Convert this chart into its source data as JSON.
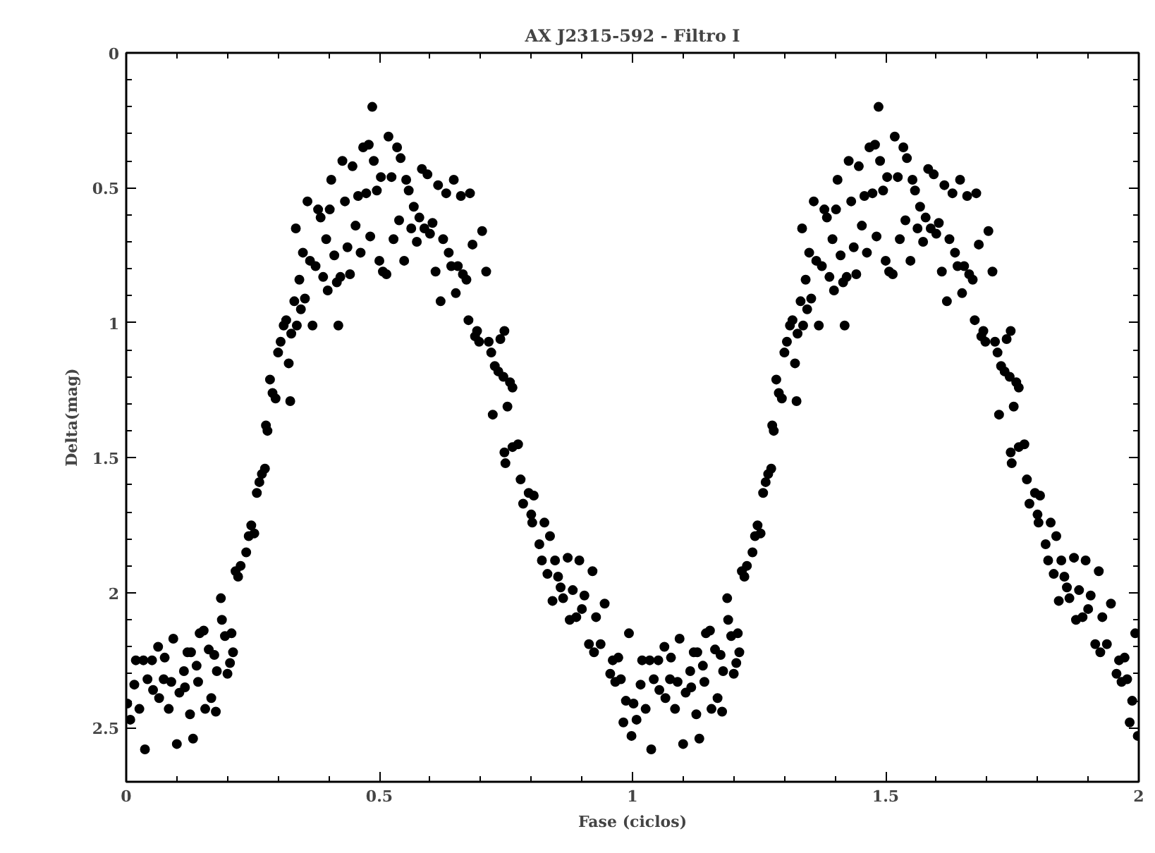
{
  "chart_data": {
    "type": "scatter",
    "title": "AX J2315-592 - Filtro I",
    "xlabel": "Fase (ciclos)",
    "ylabel": "Delta(mag)",
    "xlim": [
      0,
      2
    ],
    "ylim": [
      2.7,
      0
    ],
    "xticks": [
      0,
      0.5,
      1,
      1.5,
      2
    ],
    "yticks": [
      0,
      0.5,
      1,
      1.5,
      2,
      2.5
    ],
    "grid": false,
    "marker": "circle",
    "series": [
      {
        "color": "#000000",
        "x": [
          0.002,
          0.008,
          0.016,
          0.019,
          0.026,
          0.034,
          0.037,
          0.042,
          0.051,
          0.053,
          0.063,
          0.065,
          0.074,
          0.076,
          0.084,
          0.089,
          0.093,
          0.1,
          0.105,
          0.114,
          0.116,
          0.121,
          0.126,
          0.128,
          0.132,
          0.139,
          0.142,
          0.145,
          0.153,
          0.156,
          0.163,
          0.168,
          0.174,
          0.177,
          0.179,
          0.187,
          0.189,
          0.195,
          0.2,
          0.205,
          0.208,
          0.211,
          0.216,
          0.221,
          0.226,
          0.237,
          0.242,
          0.247,
          0.253,
          0.258,
          0.263,
          0.268,
          0.274,
          0.276,
          0.279,
          0.284,
          0.289,
          0.295,
          0.3,
          0.305,
          0.311,
          0.316,
          0.321,
          0.324,
          0.326,
          0.332,
          0.335,
          0.337,
          0.342,
          0.345,
          0.349,
          0.353,
          0.358,
          0.363,
          0.368,
          0.374,
          0.379,
          0.384,
          0.389,
          0.395,
          0.398,
          0.402,
          0.405,
          0.411,
          0.416,
          0.419,
          0.423,
          0.427,
          0.432,
          0.437,
          0.442,
          0.447,
          0.453,
          0.458,
          0.463,
          0.468,
          0.474,
          0.479,
          0.482,
          0.486,
          0.489,
          0.495,
          0.5,
          0.503,
          0.507,
          0.514,
          0.518,
          0.524,
          0.528,
          0.535,
          0.539,
          0.542,
          0.549,
          0.553,
          0.558,
          0.563,
          0.568,
          0.574,
          0.579,
          0.584,
          0.589,
          0.595,
          0.6,
          0.605,
          0.611,
          0.616,
          0.621,
          0.626,
          0.632,
          0.637,
          0.642,
          0.647,
          0.651,
          0.655,
          0.661,
          0.665,
          0.672,
          0.676,
          0.679,
          0.684,
          0.689,
          0.693,
          0.697,
          0.703,
          0.711,
          0.716,
          0.721,
          0.724,
          0.728,
          0.735,
          0.739,
          0.745,
          0.747,
          0.753,
          0.758,
          0.763,
          0.747,
          0.749,
          0.763,
          0.774,
          0.779,
          0.784,
          0.795,
          0.8,
          0.802,
          0.805,
          0.816,
          0.821,
          0.826,
          0.832,
          0.837,
          0.842,
          0.847,
          0.853,
          0.858,
          0.863,
          0.872,
          0.876,
          0.882,
          0.889,
          0.895,
          0.9,
          0.905,
          0.914,
          0.921,
          0.924,
          0.928,
          0.937,
          0.945,
          0.956,
          0.961,
          0.966,
          0.972,
          0.977,
          0.982,
          0.987,
          0.993,
          0.998,
          1.002,
          1.008,
          1.016,
          1.019,
          1.026,
          1.034,
          1.037,
          1.042,
          1.051,
          1.053,
          1.063,
          1.065,
          1.074,
          1.076,
          1.084,
          1.089,
          1.093,
          1.1,
          1.105,
          1.114,
          1.116,
          1.121,
          1.126,
          1.128,
          1.132,
          1.139,
          1.142,
          1.145,
          1.153,
          1.156,
          1.163,
          1.168,
          1.174,
          1.177,
          1.179,
          1.187,
          1.189,
          1.195,
          1.2,
          1.205,
          1.208,
          1.211,
          1.216,
          1.221,
          1.226,
          1.237,
          1.242,
          1.247,
          1.253,
          1.258,
          1.263,
          1.268,
          1.274,
          1.276,
          1.279,
          1.284,
          1.289,
          1.295,
          1.3,
          1.305,
          1.311,
          1.316,
          1.321,
          1.324,
          1.326,
          1.332,
          1.335,
          1.337,
          1.342,
          1.345,
          1.349,
          1.353,
          1.358,
          1.363,
          1.368,
          1.374,
          1.379,
          1.384,
          1.389,
          1.395,
          1.398,
          1.402,
          1.405,
          1.411,
          1.416,
          1.419,
          1.423,
          1.427,
          1.432,
          1.437,
          1.442,
          1.447,
          1.453,
          1.458,
          1.463,
          1.468,
          1.474,
          1.479,
          1.482,
          1.486,
          1.489,
          1.495,
          1.5,
          1.503,
          1.507,
          1.514,
          1.518,
          1.524,
          1.528,
          1.535,
          1.539,
          1.542,
          1.549,
          1.553,
          1.558,
          1.563,
          1.568,
          1.574,
          1.579,
          1.584,
          1.589,
          1.595,
          1.6,
          1.605,
          1.611,
          1.616,
          1.621,
          1.626,
          1.632,
          1.637,
          1.642,
          1.647,
          1.651,
          1.655,
          1.661,
          1.665,
          1.672,
          1.676,
          1.679,
          1.684,
          1.689,
          1.693,
          1.697,
          1.703,
          1.711,
          1.716,
          1.721,
          1.724,
          1.728,
          1.735,
          1.739,
          1.745,
          1.747,
          1.753,
          1.758,
          1.763,
          1.747,
          1.749,
          1.763,
          1.774,
          1.779,
          1.784,
          1.795,
          1.8,
          1.802,
          1.805,
          1.816,
          1.821,
          1.826,
          1.832,
          1.837,
          1.842,
          1.847,
          1.853,
          1.858,
          1.863,
          1.872,
          1.876,
          1.882,
          1.889,
          1.895,
          1.9,
          1.905,
          1.914,
          1.921,
          1.924,
          1.928,
          1.937,
          1.945,
          1.956,
          1.961,
          1.966,
          1.972,
          1.977,
          1.982,
          1.987,
          1.993,
          1.998
        ],
        "values": [
          2.41,
          2.47,
          2.34,
          2.25,
          2.43,
          2.25,
          2.58,
          2.32,
          2.25,
          2.36,
          2.2,
          2.39,
          2.32,
          2.24,
          2.43,
          2.33,
          2.17,
          2.56,
          2.37,
          2.29,
          2.35,
          2.22,
          2.45,
          2.22,
          2.54,
          2.27,
          2.33,
          2.15,
          2.14,
          2.43,
          2.21,
          2.39,
          2.23,
          2.44,
          2.29,
          2.02,
          2.1,
          2.16,
          2.3,
          2.26,
          2.15,
          2.22,
          1.92,
          1.94,
          1.9,
          1.85,
          1.79,
          1.75,
          1.78,
          1.63,
          1.59,
          1.56,
          1.54,
          1.38,
          1.4,
          1.21,
          1.26,
          1.28,
          1.11,
          1.07,
          1.01,
          0.99,
          1.15,
          1.29,
          1.04,
          0.92,
          0.65,
          1.01,
          0.84,
          0.95,
          0.74,
          0.91,
          0.55,
          0.77,
          1.01,
          0.79,
          0.58,
          0.61,
          0.83,
          0.69,
          0.88,
          0.58,
          0.47,
          0.75,
          0.85,
          1.01,
          0.83,
          0.4,
          0.55,
          0.72,
          0.82,
          0.42,
          0.64,
          0.53,
          0.74,
          0.35,
          0.52,
          0.34,
          0.68,
          0.2,
          0.4,
          0.51,
          0.77,
          0.46,
          0.81,
          0.82,
          0.31,
          0.46,
          0.69,
          0.35,
          0.62,
          0.39,
          0.77,
          0.47,
          0.51,
          0.65,
          0.57,
          0.7,
          0.61,
          0.43,
          0.65,
          0.45,
          0.67,
          0.63,
          0.81,
          0.49,
          0.92,
          0.69,
          0.52,
          0.74,
          0.79,
          0.47,
          0.89,
          0.79,
          0.53,
          0.82,
          0.84,
          0.99,
          0.52,
          0.71,
          1.05,
          1.03,
          1.07,
          0.66,
          0.81,
          1.07,
          1.11,
          1.34,
          1.16,
          1.18,
          1.06,
          1.2,
          1.03,
          1.31,
          1.22,
          1.24,
          1.48,
          1.52,
          1.46,
          1.45,
          1.58,
          1.67,
          1.63,
          1.71,
          1.74,
          1.64,
          1.82,
          1.88,
          1.74,
          1.93,
          1.79,
          2.03,
          1.88,
          1.94,
          1.98,
          2.02,
          1.87,
          2.1,
          1.99,
          2.09,
          1.88,
          2.06,
          2.01,
          2.19,
          1.92,
          2.22,
          2.09,
          2.19,
          2.04,
          2.3,
          2.25,
          2.33,
          2.24,
          2.32,
          2.48,
          2.4,
          2.15,
          2.53,
          2.41,
          2.47,
          2.34,
          2.25,
          2.43,
          2.25,
          2.58,
          2.32,
          2.25,
          2.36,
          2.2,
          2.39,
          2.32,
          2.24,
          2.43,
          2.33,
          2.17,
          2.56,
          2.37,
          2.29,
          2.35,
          2.22,
          2.45,
          2.22,
          2.54,
          2.27,
          2.33,
          2.15,
          2.14,
          2.43,
          2.21,
          2.39,
          2.23,
          2.44,
          2.29,
          2.02,
          2.1,
          2.16,
          2.3,
          2.26,
          2.15,
          2.22,
          1.92,
          1.94,
          1.9,
          1.85,
          1.79,
          1.75,
          1.78,
          1.63,
          1.59,
          1.56,
          1.54,
          1.38,
          1.4,
          1.21,
          1.26,
          1.28,
          1.11,
          1.07,
          1.01,
          0.99,
          1.15,
          1.29,
          1.04,
          0.92,
          0.65,
          1.01,
          0.84,
          0.95,
          0.74,
          0.91,
          0.55,
          0.77,
          1.01,
          0.79,
          0.58,
          0.61,
          0.83,
          0.69,
          0.88,
          0.58,
          0.47,
          0.75,
          0.85,
          1.01,
          0.83,
          0.4,
          0.55,
          0.72,
          0.82,
          0.42,
          0.64,
          0.53,
          0.74,
          0.35,
          0.52,
          0.34,
          0.68,
          0.2,
          0.4,
          0.51,
          0.77,
          0.46,
          0.81,
          0.82,
          0.31,
          0.46,
          0.69,
          0.35,
          0.62,
          0.39,
          0.77,
          0.47,
          0.51,
          0.65,
          0.57,
          0.7,
          0.61,
          0.43,
          0.65,
          0.45,
          0.67,
          0.63,
          0.81,
          0.49,
          0.92,
          0.69,
          0.52,
          0.74,
          0.79,
          0.47,
          0.89,
          0.79,
          0.53,
          0.82,
          0.84,
          0.99,
          0.52,
          0.71,
          1.05,
          1.03,
          1.07,
          0.66,
          0.81,
          1.07,
          1.11,
          1.34,
          1.16,
          1.18,
          1.06,
          1.2,
          1.03,
          1.31,
          1.22,
          1.24,
          1.48,
          1.52,
          1.46,
          1.45,
          1.58,
          1.67,
          1.63,
          1.71,
          1.74,
          1.64,
          1.82,
          1.88,
          1.74,
          1.93,
          1.79,
          2.03,
          1.88,
          1.94,
          1.98,
          2.02,
          1.87,
          2.1,
          1.99,
          2.09,
          1.88,
          2.06,
          2.01,
          2.19,
          1.92,
          2.22,
          2.09,
          2.19,
          2.04,
          2.3,
          2.25,
          2.33,
          2.24,
          2.32,
          2.48,
          2.4,
          2.15,
          2.53
        ]
      }
    ]
  }
}
